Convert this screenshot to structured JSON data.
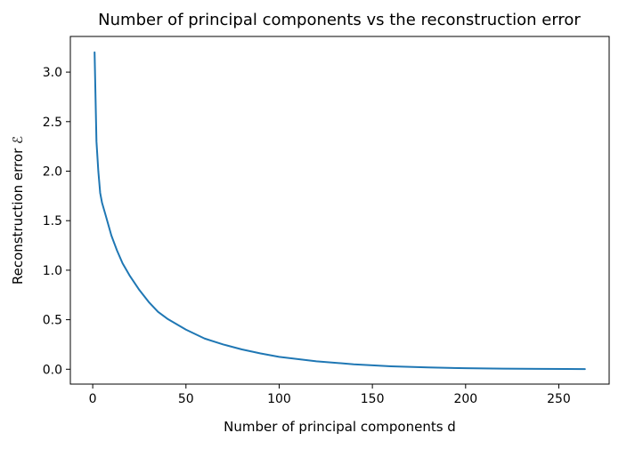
{
  "chart_data": {
    "type": "line",
    "title": "Number of principal components vs the reconstruction error",
    "xlabel": "Number of principal components d",
    "ylabel": "Reconstruction error ℰ",
    "xlim": [
      -12,
      277
    ],
    "ylim": [
      -0.15,
      3.36
    ],
    "xticks": [
      0,
      50,
      100,
      150,
      200,
      250
    ],
    "yticks": [
      0.0,
      0.5,
      1.0,
      1.5,
      2.0,
      2.5,
      3.0
    ],
    "xtick_labels": [
      "0",
      "50",
      "100",
      "150",
      "200",
      "250"
    ],
    "ytick_labels": [
      "0.0",
      "0.5",
      "1.0",
      "1.5",
      "2.0",
      "2.5",
      "3.0"
    ],
    "grid": false,
    "legend": "none",
    "series": [
      {
        "color": "#1f77b4",
        "x": [
          1,
          2,
          3,
          4,
          5,
          7,
          10,
          13,
          16,
          20,
          25,
          30,
          35,
          40,
          50,
          60,
          70,
          80,
          90,
          100,
          120,
          140,
          160,
          180,
          200,
          220,
          240,
          264
        ],
        "y": [
          3.2,
          2.3,
          2.0,
          1.78,
          1.68,
          1.55,
          1.35,
          1.2,
          1.07,
          0.94,
          0.8,
          0.68,
          0.58,
          0.51,
          0.4,
          0.31,
          0.25,
          0.2,
          0.16,
          0.125,
          0.08,
          0.05,
          0.03,
          0.018,
          0.01,
          0.006,
          0.004,
          0.002
        ]
      }
    ]
  }
}
